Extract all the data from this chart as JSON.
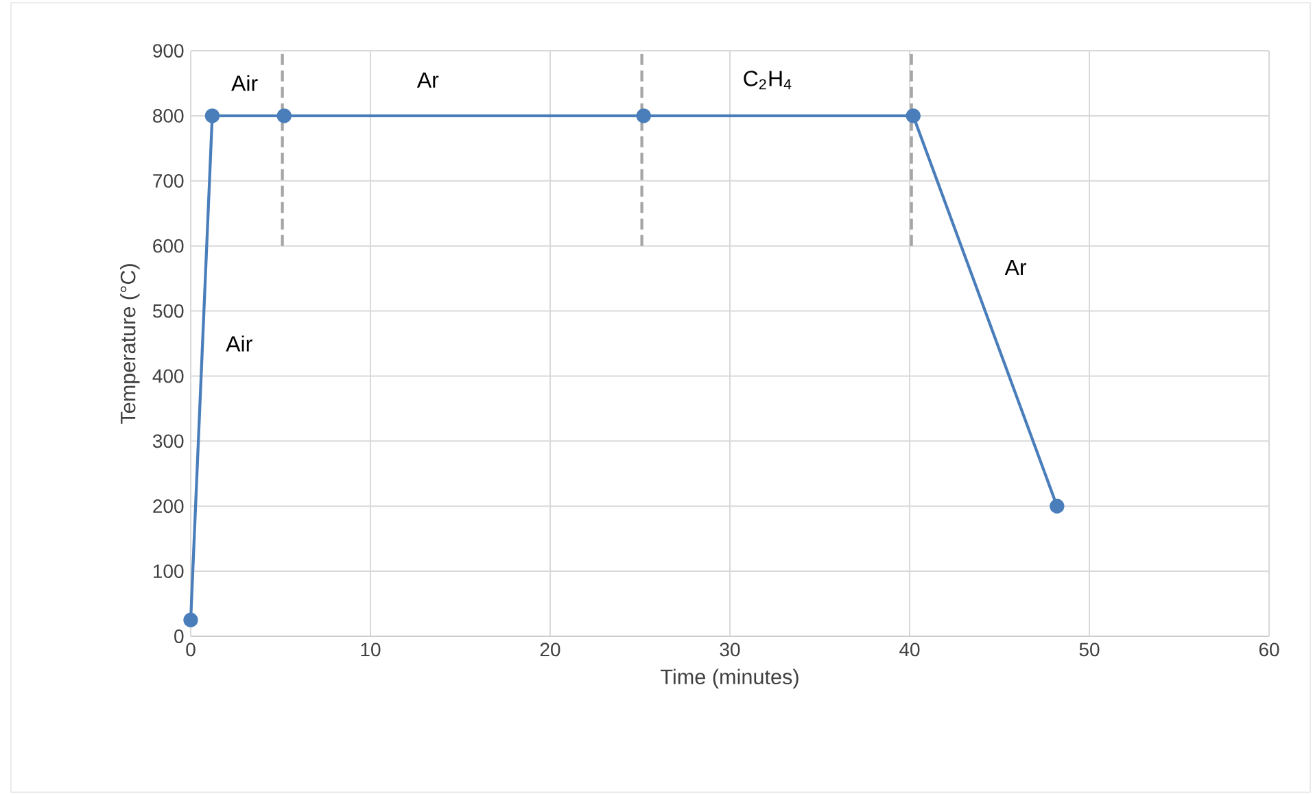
{
  "chart_data": {
    "type": "line",
    "xlabel": "Time (minutes)",
    "ylabel": "Temperature (°C)",
    "xlim": [
      0,
      60
    ],
    "ylim": [
      0,
      900
    ],
    "xticks": [
      0,
      10,
      20,
      30,
      40,
      50,
      60
    ],
    "yticks": [
      0,
      100,
      200,
      300,
      400,
      500,
      600,
      700,
      800,
      900
    ],
    "grid": true,
    "marker": "circle",
    "line_style": "solid",
    "series": [
      {
        "color": "#4a7ebb",
        "x": [
          0,
          1.2,
          5.2,
          25.2,
          40.2,
          48.2
        ],
        "values": [
          25,
          800,
          800,
          800,
          800,
          200
        ]
      },
      {
        "color": "#a5a5a5",
        "line_style": "dashed",
        "marker": "none",
        "x": [
          5.1,
          5.1
        ],
        "values": [
          600,
          900
        ]
      },
      {
        "color": "#a5a5a5",
        "line_style": "dashed",
        "marker": "none",
        "x": [
          25.1,
          25.1
        ],
        "values": [
          600,
          900
        ]
      },
      {
        "color": "#a5a5a5",
        "line_style": "dashed",
        "marker": "none",
        "x": [
          40.1,
          40.1
        ],
        "values": [
          600,
          900
        ]
      }
    ],
    "annotations": [
      "Air",
      "Ar",
      "C$_{2}$H$_{4}$",
      "Air",
      "Ar"
    ]
  }
}
